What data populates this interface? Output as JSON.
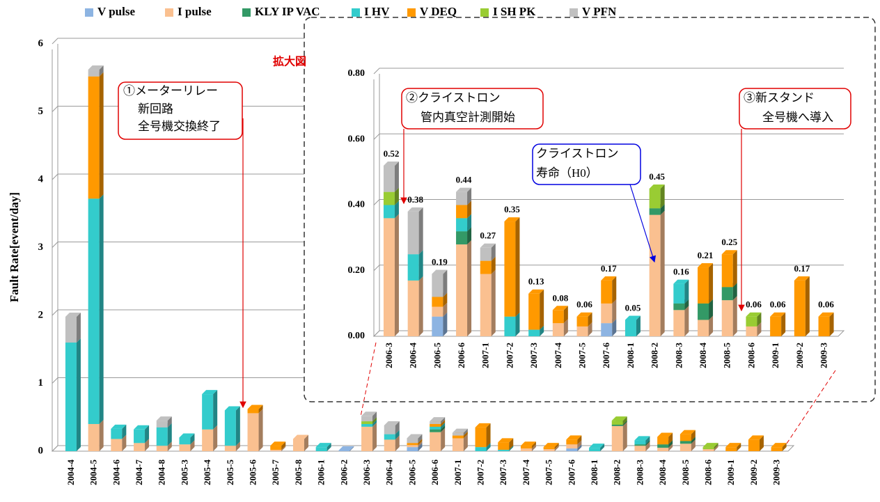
{
  "chart_data": [
    {
      "type": "bar",
      "stacked": true,
      "legend": "top",
      "grid": true,
      "ylabel": "Fault Rate[event/day]",
      "ylim": [
        0,
        6
      ],
      "yticks": [
        0,
        1,
        2,
        3,
        4,
        5,
        6
      ],
      "categories": [
        "2004-4",
        "2004-5",
        "2004-6",
        "2004-7",
        "2004-8",
        "2005-3",
        "2005-4",
        "2005-5",
        "2005-6",
        "2005-7",
        "2005-8",
        "2006-1",
        "2006-2",
        "2006-3",
        "2006-4",
        "2006-5",
        "2006-6",
        "2007-1",
        "2007-2",
        "2007-3",
        "2007-4",
        "2007-5",
        "2007-6",
        "2008-1",
        "2008-2",
        "2008-3",
        "2008-4",
        "2008-5",
        "2008-6",
        "2009-1",
        "2009-2",
        "2009-3"
      ],
      "series": [
        {
          "name": "V pulse",
          "color": "#8db4e2",
          "values": [
            0,
            0,
            0,
            0,
            0,
            0,
            0,
            0,
            0,
            0,
            0,
            0,
            0.01,
            0,
            0,
            0.06,
            0,
            0,
            0,
            0,
            0,
            0,
            0.04,
            0,
            0,
            0,
            0,
            0,
            0,
            0,
            0,
            0
          ]
        },
        {
          "name": "I pulse",
          "color": "#fac090",
          "values": [
            0,
            0.4,
            0.18,
            0.12,
            0.08,
            0.1,
            0.32,
            0.08,
            0.56,
            0.02,
            0.18,
            0,
            0,
            0.36,
            0.17,
            0.03,
            0.28,
            0.19,
            0,
            0,
            0.04,
            0.03,
            0.06,
            0,
            0.37,
            0.08,
            0.05,
            0.11,
            0.03,
            0,
            0,
            0
          ]
        },
        {
          "name": "KLY IP VAC",
          "color": "#339966",
          "values": [
            0,
            0,
            0,
            0,
            0,
            0,
            0,
            0,
            0,
            0,
            0,
            0,
            0,
            0,
            0,
            0,
            0.04,
            0,
            0,
            0,
            0,
            0,
            0,
            0,
            0.02,
            0.02,
            0.05,
            0.04,
            0,
            0,
            0,
            0
          ]
        },
        {
          "name": "I HV",
          "color": "#33cccc",
          "values": [
            1.6,
            3.32,
            0.15,
            0.2,
            0.27,
            0.1,
            0.52,
            0.52,
            0,
            0,
            0,
            0.06,
            0,
            0.04,
            0.08,
            0,
            0.04,
            0,
            0.06,
            0.02,
            0,
            0,
            0,
            0.05,
            0,
            0.06,
            0,
            0,
            0,
            0,
            0,
            0
          ]
        },
        {
          "name": "V DEQ",
          "color": "#ff9900",
          "values": [
            0,
            1.8,
            0,
            0,
            0,
            0,
            0,
            0,
            0.06,
            0.06,
            0,
            0,
            0,
            0,
            0,
            0.03,
            0.04,
            0.04,
            0.29,
            0.11,
            0.04,
            0.03,
            0.07,
            0,
            0,
            0,
            0.11,
            0.1,
            0,
            0.06,
            0.17,
            0.06
          ]
        },
        {
          "name": "I SH PK",
          "color": "#99cc33",
          "values": [
            0,
            0,
            0,
            0,
            0,
            0,
            0,
            0,
            0,
            0,
            0,
            0,
            0,
            0.04,
            0,
            0,
            0,
            0,
            0,
            0,
            0,
            0,
            0,
            0,
            0.06,
            0,
            0,
            0,
            0.03,
            0,
            0,
            0
          ]
        },
        {
          "name": "V PFN",
          "color": "#c0c0c0",
          "values": [
            0.38,
            0.1,
            0,
            0,
            0.1,
            0,
            0,
            0,
            0,
            0,
            0,
            0,
            0,
            0.08,
            0.13,
            0.07,
            0.04,
            0.04,
            0,
            0,
            0,
            0,
            0,
            0,
            0,
            0,
            0,
            0,
            0,
            0,
            0,
            0
          ]
        }
      ],
      "annotations": [
        {
          "text": [
            "①メーターリレー",
            "新回路",
            "全号機交換終了"
          ]
        }
      ]
    },
    {
      "type": "bar",
      "stacked": true,
      "grid": true,
      "title": "拡大図",
      "ylim": [
        0,
        0.8
      ],
      "yticks": [
        {
          "value": 0,
          "label": "0.00"
        },
        {
          "value": 0.2,
          "label": "0.20"
        },
        {
          "value": 0.4,
          "label": "0.40"
        },
        {
          "value": 0.6,
          "label": "0.60"
        },
        {
          "value": 0.8,
          "label": "0.80"
        }
      ],
      "categories": [
        "2006-3",
        "2006-4",
        "2006-5",
        "2006-6",
        "2007-1",
        "2007-2",
        "2007-3",
        "2007-4",
        "2007-5",
        "2007-6",
        "2008-1",
        "2008-2",
        "2008-3",
        "2008-4",
        "2008-5",
        "2008-6",
        "2009-1",
        "2009-2",
        "2009-3"
      ],
      "series": [
        {
          "color": "#8db4e2",
          "values": [
            0,
            0,
            0.06,
            0,
            0,
            0,
            0,
            0,
            0,
            0.04,
            0,
            0,
            0,
            0,
            0,
            0,
            0,
            0,
            0
          ]
        },
        {
          "color": "#fac090",
          "values": [
            0.36,
            0.17,
            0.03,
            0.28,
            0.19,
            0,
            0,
            0.04,
            0.03,
            0.06,
            0,
            0.37,
            0.08,
            0.05,
            0.11,
            0.03,
            0,
            0,
            0
          ]
        },
        {
          "color": "#339966",
          "values": [
            0,
            0,
            0,
            0.04,
            0,
            0,
            0,
            0,
            0,
            0,
            0,
            0.02,
            0.02,
            0.05,
            0.04,
            0,
            0,
            0,
            0
          ]
        },
        {
          "color": "#33cccc",
          "values": [
            0.04,
            0.08,
            0,
            0.04,
            0,
            0.06,
            0.02,
            0,
            0,
            0,
            0.05,
            0,
            0.06,
            0,
            0,
            0,
            0,
            0,
            0
          ]
        },
        {
          "color": "#ff9900",
          "values": [
            0,
            0,
            0.03,
            0.04,
            0.04,
            0.29,
            0.11,
            0.04,
            0.03,
            0.07,
            0,
            0,
            0,
            0.11,
            0.1,
            0,
            0.06,
            0.17,
            0.06
          ]
        },
        {
          "color": "#99cc33",
          "values": [
            0.04,
            0,
            0,
            0,
            0,
            0,
            0,
            0,
            0,
            0,
            0,
            0.06,
            0,
            0,
            0,
            0.03,
            0,
            0,
            0
          ]
        },
        {
          "color": "#c0c0c0",
          "values": [
            0.08,
            0.13,
            0.07,
            0.04,
            0.04,
            0,
            0,
            0,
            0,
            0,
            0,
            0,
            0,
            0,
            0,
            0,
            0,
            0,
            0
          ]
        }
      ],
      "totals": [
        0.52,
        0.38,
        0.19,
        0.44,
        0.27,
        0.35,
        0.13,
        0.08,
        0.06,
        0.17,
        0.05,
        0.45,
        0.16,
        0.21,
        0.25,
        0.06,
        0.06,
        0.17,
        0.06
      ],
      "annotations": [
        {
          "text": [
            "②クライストロン",
            "管内真空計測開始"
          ]
        },
        {
          "text": [
            "クライストロン",
            "寿命（H0）"
          ]
        },
        {
          "text": [
            "③新スタンド",
            "全号機へ導入"
          ]
        }
      ]
    }
  ]
}
